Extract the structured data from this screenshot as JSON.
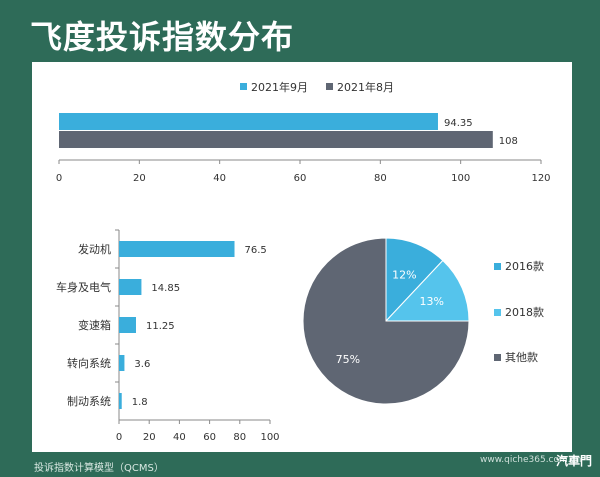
{
  "page": {
    "title": "飞度投诉指数分布",
    "footer": "投诉指数计算模型（QCMS）",
    "watermark_url": "www.qiche365.com.cn",
    "watermark_brand": "汽車門"
  },
  "chart_data": [
    {
      "type": "bar",
      "orientation": "horizontal",
      "series": [
        {
          "name": "2021年9月",
          "values": [
            94.35
          ],
          "color": "#3aaedc"
        },
        {
          "name": "2021年8月",
          "values": [
            108
          ],
          "color": "#5f6673"
        }
      ],
      "categories": [
        ""
      ],
      "xlim": [
        0,
        120
      ],
      "xticks": [
        0,
        20,
        40,
        60,
        80,
        100,
        120
      ],
      "legend": "top"
    },
    {
      "type": "bar",
      "orientation": "horizontal",
      "categories": [
        "发动机",
        "车身及电气",
        "变速箱",
        "转向系统",
        "制动系统"
      ],
      "values": [
        76.5,
        14.85,
        11.25,
        3.6,
        1.8
      ],
      "value_labels": [
        "76.5",
        "14.85",
        "11.25",
        "3.6",
        "1.8"
      ],
      "color": "#3aaedc",
      "xlim": [
        0,
        100
      ],
      "xticks": [
        0,
        20,
        40,
        60,
        80,
        100
      ]
    },
    {
      "type": "pie",
      "slices": [
        {
          "label": "2016款",
          "value": 12,
          "text": "12%",
          "color": "#3aaedc"
        },
        {
          "label": "2018款",
          "value": 13,
          "text": "13%",
          "color": "#55c4ec"
        },
        {
          "label": "其他款",
          "value": 75,
          "text": "75%",
          "color": "#5f6673"
        }
      ],
      "legend": "right"
    }
  ]
}
